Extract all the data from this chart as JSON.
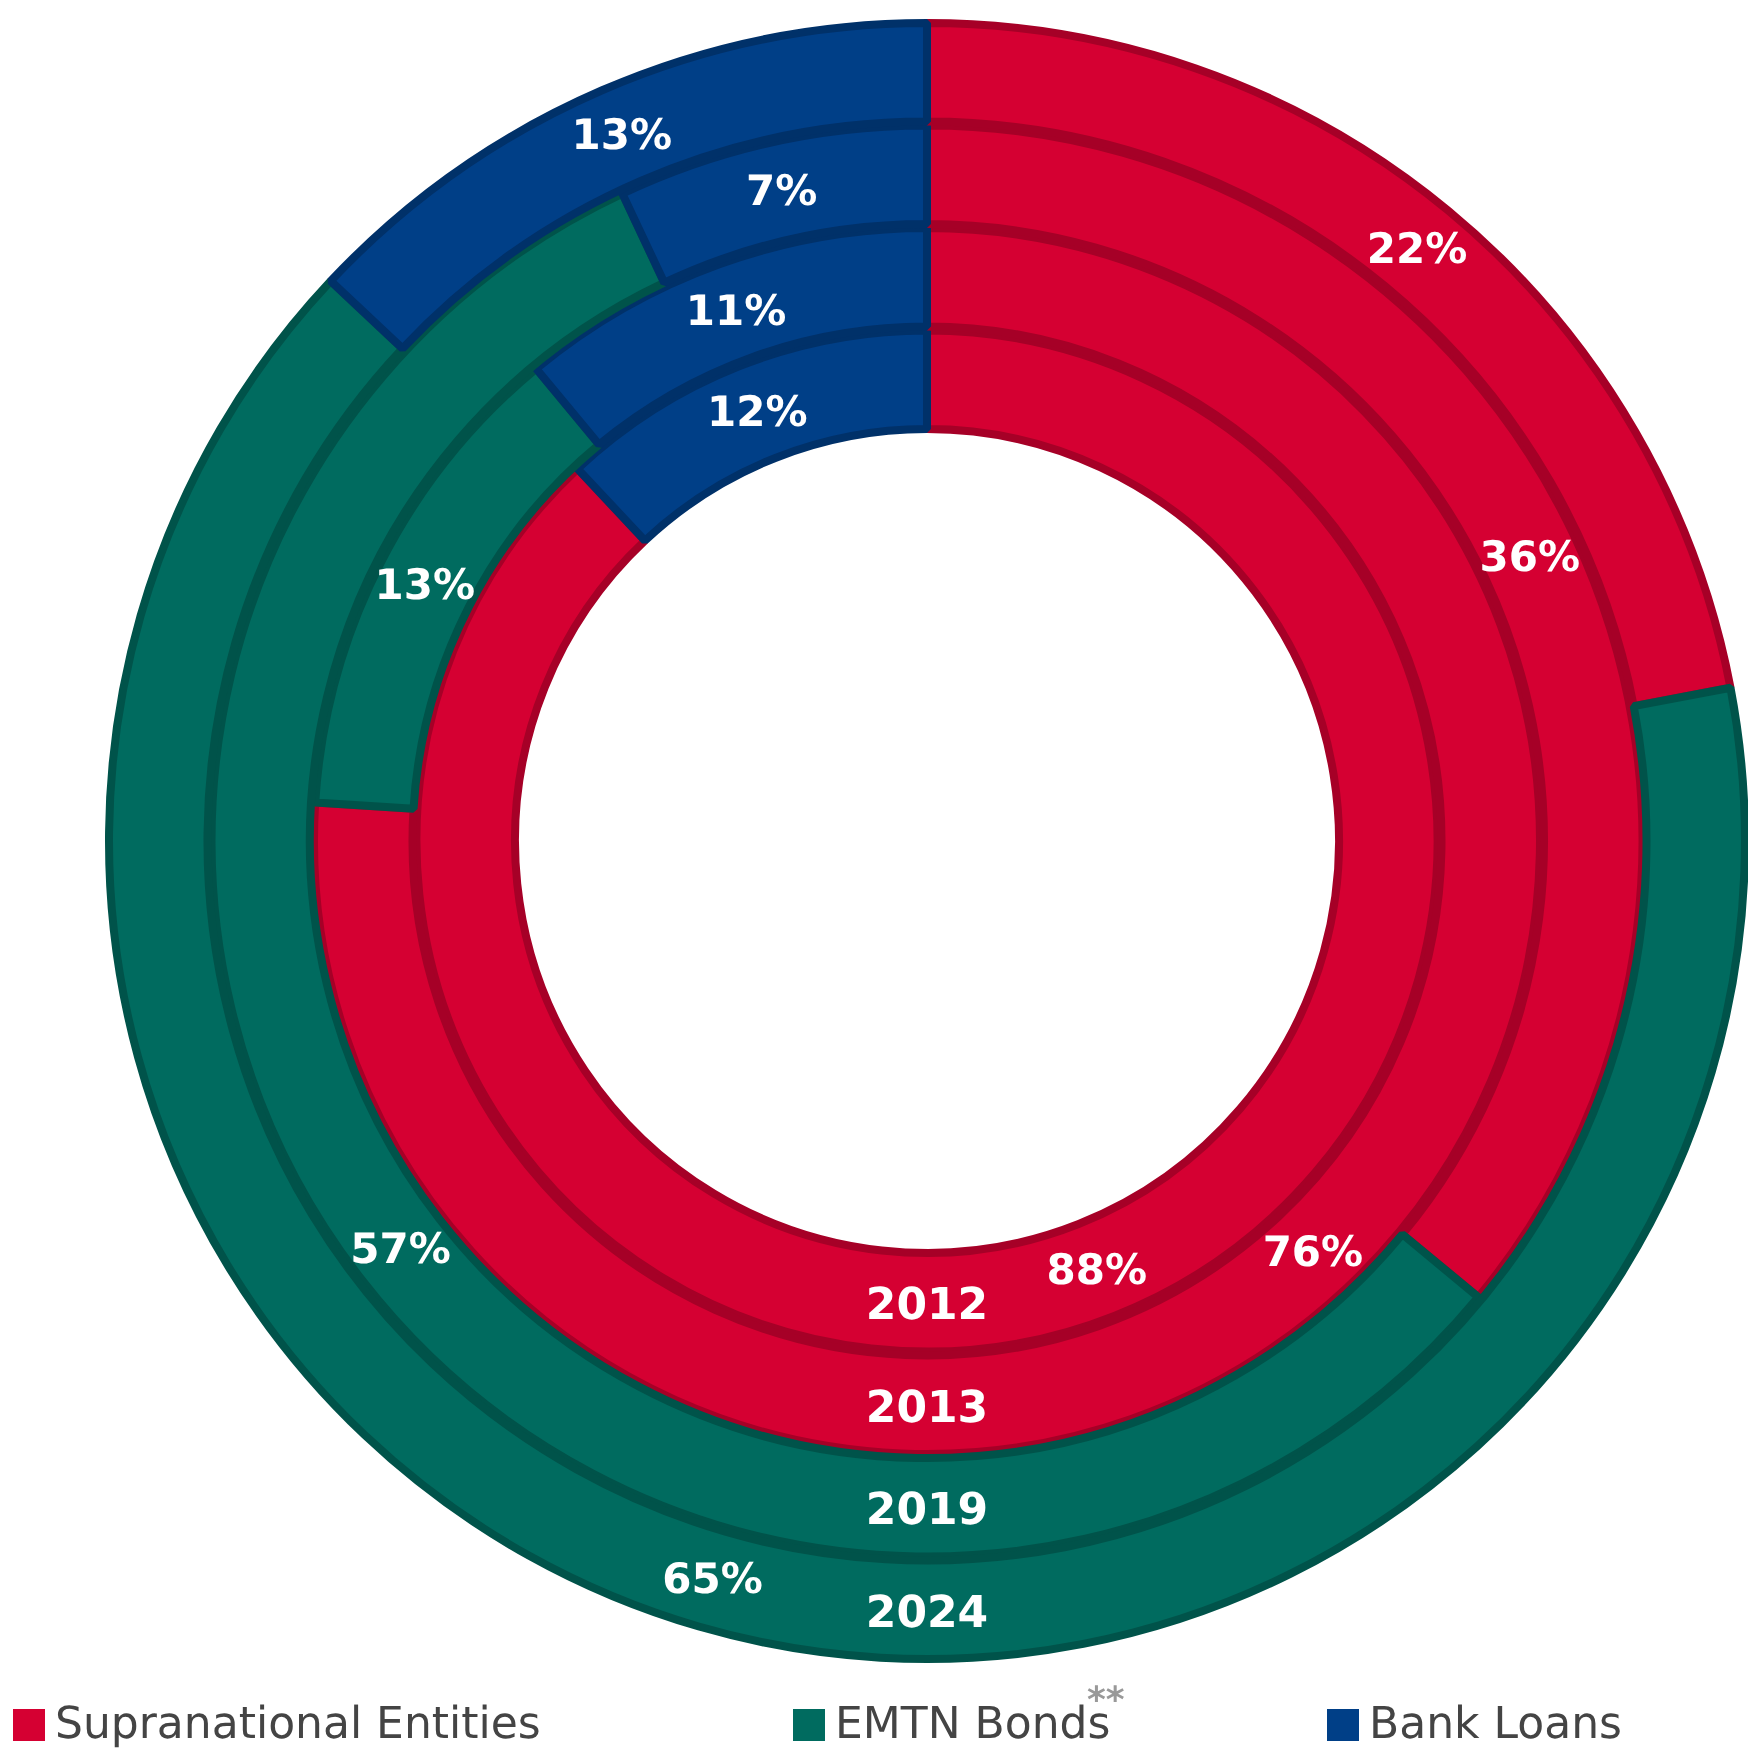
{
  "chart_data": {
    "type": "donut",
    "categories": [
      "Supranational Entities",
      "EMTN Bonds$^{**}$",
      "Bank Loans"
    ],
    "colors": [
      "#d50032",
      "#006b5f",
      "#003f87"
    ],
    "series": [
      {
        "name": "2012",
        "values": [
          88,
          0,
          12
        ],
        "value_labels": [
          "88%",
          null,
          "12%"
        ]
      },
      {
        "name": "2013",
        "values": [
          76,
          13,
          11
        ],
        "value_labels": [
          "76%",
          "13%",
          "11%"
        ]
      },
      {
        "name": "2019",
        "values": [
          36,
          57,
          7
        ],
        "value_labels": [
          "36%",
          "57%",
          "7%"
        ]
      },
      {
        "name": "2024",
        "values": [
          22,
          65,
          13
        ],
        "value_labels": [
          "22%",
          "65%",
          "13%"
        ]
      }
    ],
    "legend": "bottom"
  }
}
